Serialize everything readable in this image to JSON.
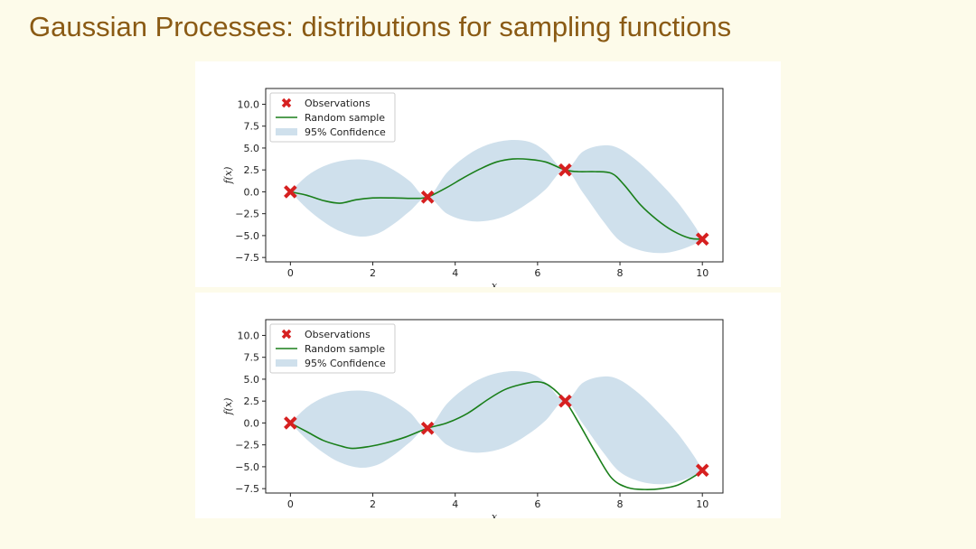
{
  "slide": {
    "title": "Gaussian Processes: distributions for sampling functions"
  },
  "colors": {
    "title": "#8a5a14",
    "background": "#fdfbea",
    "sample_line": "#1a7f1a",
    "confidence_fill": "#cfe0ec",
    "observation_marker": "#d62020"
  },
  "chart_data": [
    {
      "type": "line",
      "xlabel": "x",
      "ylabel": "f(x)",
      "xlim": [
        -0.6,
        10.5
      ],
      "ylim": [
        -8.0,
        11.8
      ],
      "xticks": [
        0,
        2,
        4,
        6,
        8,
        10
      ],
      "xtick_labels": [
        "0",
        "2",
        "4",
        "6",
        "8",
        "10"
      ],
      "yticks": [
        10.0,
        7.5,
        5.0,
        2.5,
        0.0,
        -2.5,
        -5.0,
        -7.5
      ],
      "ytick_labels": [
        "10.0",
        "7.5",
        "5.0",
        "2.5",
        "0.0",
        "−2.5",
        "−5.0",
        "−7.5"
      ],
      "legend": {
        "position": "upper-left",
        "entries": [
          "Observations",
          "Random sample",
          "95% Confidence"
        ]
      },
      "observations": {
        "name": "Observations",
        "x": [
          0,
          3.33,
          6.67,
          10
        ],
        "y": [
          0.0,
          -0.6,
          2.5,
          -5.4
        ]
      },
      "sample": {
        "name": "Random sample",
        "x": [
          0,
          0.4,
          0.8,
          1.2,
          1.6,
          2.0,
          2.5,
          3.0,
          3.33,
          3.8,
          4.2,
          4.6,
          5.0,
          5.4,
          5.8,
          6.2,
          6.67,
          7.0,
          7.4,
          7.8,
          8.1,
          8.5,
          8.9,
          9.3,
          9.7,
          10.0
        ],
        "y": [
          0.0,
          -0.4,
          -1.0,
          -1.3,
          -0.9,
          -0.7,
          -0.7,
          -0.75,
          -0.6,
          0.5,
          1.6,
          2.6,
          3.4,
          3.75,
          3.7,
          3.4,
          2.5,
          2.3,
          2.3,
          2.1,
          0.8,
          -1.5,
          -3.2,
          -4.5,
          -5.3,
          -5.4
        ]
      },
      "confidence": {
        "name": "95% Confidence",
        "x": [
          0,
          0.4,
          0.8,
          1.2,
          1.67,
          2.1,
          2.5,
          2.9,
          3.33,
          3.8,
          4.3,
          4.8,
          5.3,
          5.8,
          6.2,
          6.67,
          7.1,
          7.6,
          8.0,
          8.5,
          9.0,
          9.4,
          9.8,
          10.0
        ],
        "upper": [
          0.0,
          1.8,
          2.9,
          3.5,
          3.7,
          3.4,
          2.5,
          1.2,
          -0.6,
          2.2,
          4.2,
          5.4,
          5.9,
          5.7,
          4.6,
          2.5,
          4.6,
          5.3,
          4.9,
          3.2,
          0.9,
          -1.2,
          -3.8,
          -5.4
        ],
        "lower": [
          0.0,
          -1.9,
          -3.4,
          -4.5,
          -5.1,
          -4.8,
          -3.7,
          -2.2,
          -0.6,
          -2.5,
          -3.3,
          -3.3,
          -2.6,
          -1.2,
          0.3,
          2.5,
          -0.1,
          -3.4,
          -5.6,
          -6.7,
          -7.0,
          -6.7,
          -6.0,
          -5.4
        ]
      }
    },
    {
      "type": "line",
      "xlabel": "x",
      "ylabel": "f(x)",
      "xlim": [
        -0.6,
        10.5
      ],
      "ylim": [
        -8.0,
        11.8
      ],
      "xticks": [
        0,
        2,
        4,
        6,
        8,
        10
      ],
      "xtick_labels": [
        "0",
        "2",
        "4",
        "6",
        "8",
        "10"
      ],
      "yticks": [
        10.0,
        7.5,
        5.0,
        2.5,
        0.0,
        -2.5,
        -5.0,
        -7.5
      ],
      "ytick_labels": [
        "10.0",
        "7.5",
        "5.0",
        "2.5",
        "0.0",
        "−2.5",
        "−5.0",
        "−7.5"
      ],
      "legend": {
        "position": "upper-left",
        "entries": [
          "Observations",
          "Random sample",
          "95% Confidence"
        ]
      },
      "observations": {
        "name": "Observations",
        "x": [
          0,
          3.33,
          6.67,
          10
        ],
        "y": [
          0.0,
          -0.6,
          2.5,
          -5.4
        ]
      },
      "sample": {
        "name": "Random sample",
        "x": [
          0,
          0.4,
          0.8,
          1.2,
          1.5,
          1.9,
          2.3,
          2.8,
          3.33,
          3.8,
          4.3,
          4.8,
          5.2,
          5.6,
          6.0,
          6.3,
          6.67,
          7.0,
          7.4,
          7.8,
          8.2,
          8.6,
          9.0,
          9.4,
          9.8,
          10.0
        ],
        "y": [
          0.0,
          -1.0,
          -2.0,
          -2.6,
          -2.9,
          -2.7,
          -2.3,
          -1.6,
          -0.6,
          0.0,
          1.1,
          2.7,
          3.8,
          4.4,
          4.7,
          4.2,
          2.5,
          0.0,
          -3.3,
          -6.3,
          -7.4,
          -7.6,
          -7.5,
          -7.1,
          -6.1,
          -5.4
        ]
      },
      "confidence": {
        "name": "95% Confidence",
        "x": [
          0,
          0.4,
          0.8,
          1.2,
          1.67,
          2.1,
          2.5,
          2.9,
          3.33,
          3.8,
          4.3,
          4.8,
          5.3,
          5.8,
          6.2,
          6.67,
          7.1,
          7.6,
          8.0,
          8.5,
          9.0,
          9.4,
          9.8,
          10.0
        ],
        "upper": [
          0.0,
          1.8,
          2.9,
          3.5,
          3.7,
          3.4,
          2.5,
          1.2,
          -0.6,
          2.2,
          4.2,
          5.4,
          5.9,
          5.7,
          4.6,
          2.5,
          4.6,
          5.3,
          4.9,
          3.2,
          0.9,
          -1.2,
          -3.8,
          -5.4
        ],
        "lower": [
          0.0,
          -1.9,
          -3.4,
          -4.5,
          -5.1,
          -4.8,
          -3.7,
          -2.2,
          -0.6,
          -2.5,
          -3.3,
          -3.3,
          -2.6,
          -1.2,
          0.3,
          2.5,
          -0.1,
          -3.4,
          -5.6,
          -6.7,
          -7.0,
          -6.7,
          -6.0,
          -5.4
        ]
      }
    }
  ]
}
